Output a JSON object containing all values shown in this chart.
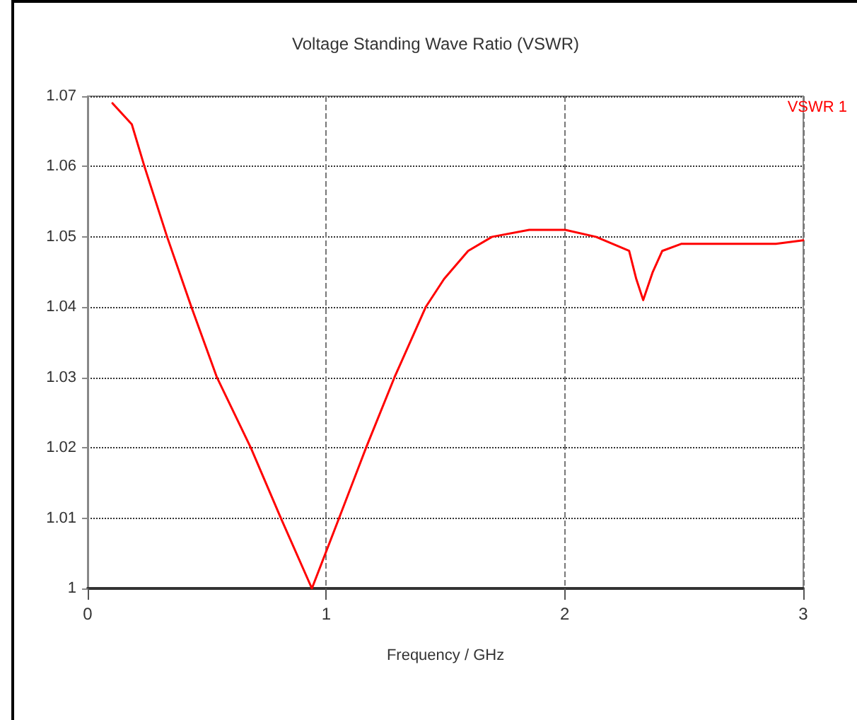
{
  "chart_data": {
    "type": "line",
    "title": "Voltage Standing Wave Ratio (VSWR)",
    "xlabel": "Frequency / GHz",
    "xlim": [
      0,
      3
    ],
    "xticks": [
      0,
      1,
      2,
      3
    ],
    "ylim": [
      1,
      1.07
    ],
    "yticks": [
      1,
      1.01,
      1.02,
      1.03,
      1.04,
      1.05,
      1.06,
      1.07
    ],
    "grid": true,
    "legend": "top right",
    "marker": "none",
    "line_style": "solid",
    "series": [
      {
        "name": "VSWR 1",
        "color": "#ff0000",
        "x": [
          0.104,
          0.185,
          0.238,
          0.333,
          0.435,
          0.542,
          0.684,
          0.81,
          0.94,
          1.054,
          1.167,
          1.286,
          1.417,
          1.494,
          1.595,
          1.695,
          1.851,
          2.002,
          2.131,
          2.27,
          2.3,
          2.329,
          2.369,
          2.409,
          2.488,
          2.687,
          2.885,
          3.0
        ],
        "values": [
          1.069,
          1.066,
          1.06,
          1.05,
          1.04,
          1.03,
          1.02,
          1.01,
          1.0,
          1.01,
          1.02,
          1.03,
          1.04,
          1.044,
          1.048,
          1.05,
          1.051,
          1.051,
          1.05,
          1.048,
          1.044,
          1.041,
          1.045,
          1.048,
          1.049,
          1.049,
          1.049,
          1.0495
        ]
      }
    ]
  }
}
